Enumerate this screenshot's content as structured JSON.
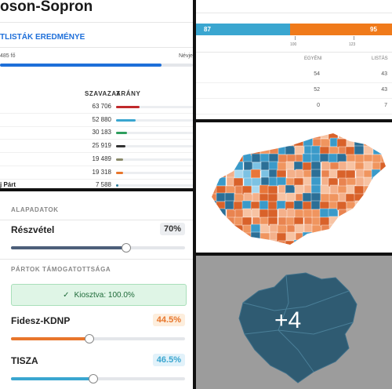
{
  "county_results": {
    "title": "oson-Sopron",
    "section": "TLISTÁK EREDMÉNYE",
    "voters": "485 fő",
    "name_header": "Névje",
    "headers": {
      "votes": "SZAVAZAT",
      "share": "ARÁNY"
    },
    "rows": [
      {
        "votes": "63 706"
      },
      {
        "votes": "52 880"
      },
      {
        "votes": "30 183"
      },
      {
        "votes": "25 919"
      },
      {
        "votes": "19 489"
      },
      {
        "votes": "19 318"
      },
      {
        "label": "j Párt",
        "votes": "7 588"
      }
    ]
  },
  "seats": {
    "bar": [
      "87",
      "95"
    ],
    "ticks": [
      "100",
      "123"
    ],
    "headers": [
      "EGYÉNI",
      "LISTÁS"
    ],
    "rows": [
      [
        "54",
        "43"
      ],
      [
        "52",
        "43"
      ],
      [
        "0",
        "7"
      ]
    ]
  },
  "controls": {
    "basics": "ALAPADATOK",
    "turnout_label": "Részvétel",
    "turnout": "70%",
    "parties_header": "PÁRTOK TÁMOGATOTTSÁGA",
    "allocated": "Kiosztva: 100.0%",
    "parties": [
      {
        "name": "Fidesz-KDNP",
        "share": "44.5%"
      },
      {
        "name": "TISZA",
        "share": "46.5%"
      }
    ]
  },
  "gallery": {
    "more": "+4"
  }
}
